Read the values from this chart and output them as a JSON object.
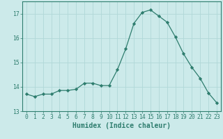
{
  "x": [
    0,
    1,
    2,
    3,
    4,
    5,
    6,
    7,
    8,
    9,
    10,
    11,
    12,
    13,
    14,
    15,
    16,
    17,
    18,
    19,
    20,
    21,
    22,
    23
  ],
  "y": [
    13.7,
    13.6,
    13.7,
    13.7,
    13.85,
    13.85,
    13.9,
    14.15,
    14.15,
    14.05,
    14.05,
    14.7,
    15.55,
    16.6,
    17.05,
    17.15,
    16.9,
    16.65,
    16.05,
    15.35,
    14.8,
    14.35,
    13.75,
    13.35
  ],
  "line_color": "#2e7d6e",
  "marker": "D",
  "marker_size": 2.2,
  "bg_color": "#cceaea",
  "grid_color": "#b0d8d8",
  "xlabel": "Humidex (Indice chaleur)",
  "ylabel": "",
  "xlim": [
    -0.5,
    23.5
  ],
  "ylim": [
    13.0,
    17.5
  ],
  "yticks": [
    13,
    14,
    15,
    16,
    17
  ],
  "xticks": [
    0,
    1,
    2,
    3,
    4,
    5,
    6,
    7,
    8,
    9,
    10,
    11,
    12,
    13,
    14,
    15,
    16,
    17,
    18,
    19,
    20,
    21,
    22,
    23
  ],
  "tick_color": "#2e7d6e",
  "tick_fontsize": 5.8,
  "xlabel_fontsize": 7.0,
  "line_width": 0.9
}
